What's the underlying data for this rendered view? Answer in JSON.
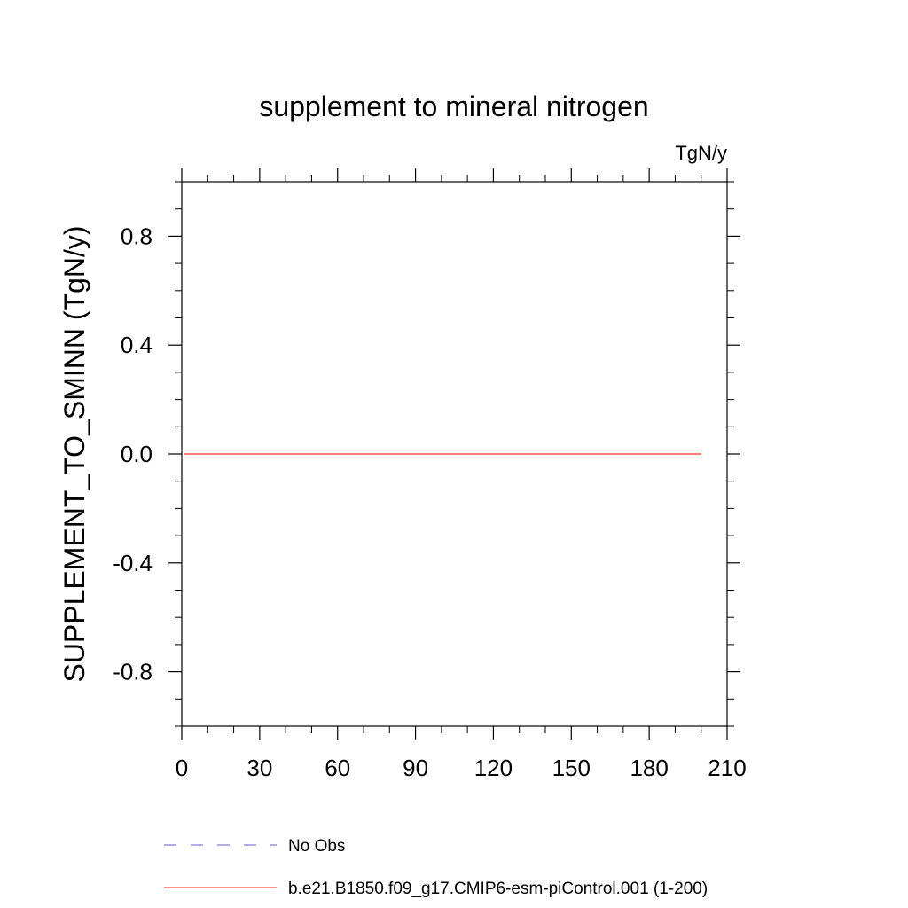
{
  "chart_data": {
    "type": "line",
    "title": "supplement to mineral nitrogen",
    "units_label": "TgN/y",
    "xlabel": "",
    "ylabel": "SUPPLEMENT_TO_SMINN  (TgN/y)",
    "xlim": [
      0,
      210
    ],
    "ylim": [
      -1.0,
      1.0
    ],
    "x_ticks": [
      0,
      30,
      60,
      90,
      120,
      150,
      180,
      210
    ],
    "x_tick_labels": [
      "0",
      "30",
      "60",
      "90",
      "120",
      "150",
      "180",
      "210"
    ],
    "x_minor_step": 10,
    "y_ticks": [
      -0.8,
      -0.4,
      0.0,
      0.4,
      0.8
    ],
    "y_tick_labels": [
      "-0.8",
      "-0.4",
      "0.0",
      "0.4",
      "0.8"
    ],
    "y_minor_step": 0.1,
    "grid": false,
    "legend_position": "bottom",
    "series": [
      {
        "name": "No Obs",
        "color": "#6a5acd",
        "dash": "dashed",
        "x": [],
        "y": []
      },
      {
        "name": "b.e21.B1850.f09_g17.CMIP6-esm-piControl.001 (1-200)",
        "color": "#ff2a2a",
        "dash": "solid",
        "x": [
          1,
          200
        ],
        "y": [
          0.0,
          0.0
        ]
      }
    ]
  }
}
